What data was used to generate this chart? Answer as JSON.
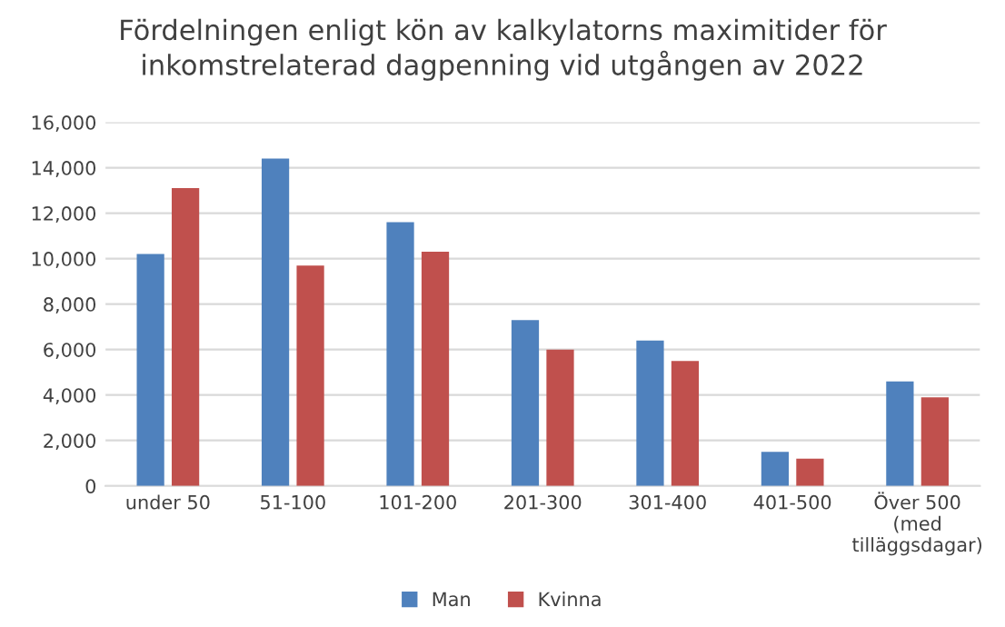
{
  "chart_data": {
    "type": "bar",
    "title": "Fördelningen enligt kön av kalkylatorns maximitider för inkomstrelaterad dagpenning vid utgången av 2022",
    "categories": [
      "under 50",
      "51-100",
      "101-200",
      "201-300",
      "301-400",
      "401-500",
      "Över 500\n(med\ntilläggsdagar)"
    ],
    "series": [
      {
        "name": "Man",
        "color": "#4f81bd",
        "values": [
          10200,
          14400,
          11600,
          7300,
          6400,
          1500,
          4600
        ]
      },
      {
        "name": "Kvinna",
        "color": "#c0504d",
        "values": [
          13100,
          9700,
          10300,
          6000,
          5500,
          1200,
          3900
        ]
      }
    ],
    "ylim": [
      0,
      16000
    ],
    "yticks": [
      {
        "value": 0,
        "label": "0"
      },
      {
        "value": 2000,
        "label": "2,000"
      },
      {
        "value": 4000,
        "label": "4,000"
      },
      {
        "value": 6000,
        "label": "6,000"
      },
      {
        "value": 8000,
        "label": "8,000"
      },
      {
        "value": 10000,
        "label": "10,000"
      },
      {
        "value": 12000,
        "label": "12,000"
      },
      {
        "value": 14000,
        "label": "14,000"
      },
      {
        "value": 16000,
        "label": "16,000"
      }
    ],
    "grid": "y",
    "legend": "bottom"
  }
}
